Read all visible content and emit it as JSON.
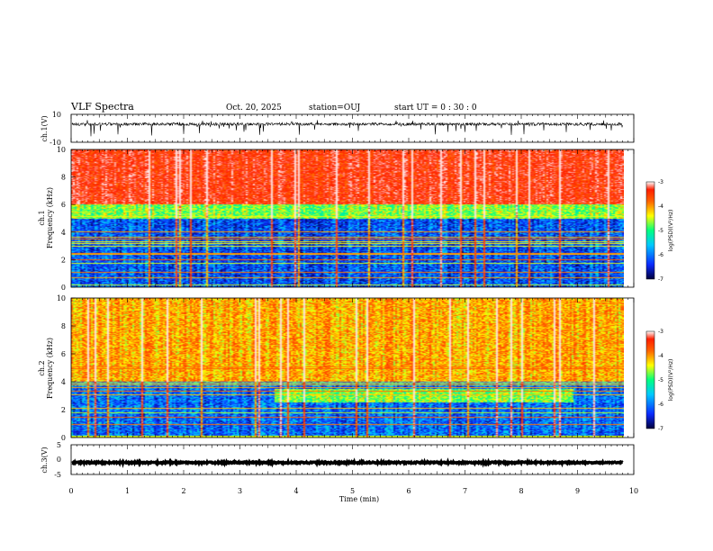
{
  "header": {
    "title": "VLF Spectra",
    "date": "Oct. 20, 2025",
    "station": "station=OUJ",
    "start_ut": "start UT =  0 : 30 : 0"
  },
  "chart_data": [
    {
      "type": "line",
      "name": "ch1-waveform",
      "ylabel": "ch.1(V)",
      "ylim": [
        -10,
        10
      ],
      "yticks": [
        "10",
        "-10"
      ],
      "xlim": [
        0,
        9.8
      ],
      "baseline": 3,
      "noise_amplitude": 1,
      "spike_range": [
        -6,
        6
      ]
    },
    {
      "type": "heatmap",
      "name": "ch1-spectrogram",
      "ylabel_lines": [
        "ch.1",
        "Frequency (kHz)"
      ],
      "ylim": [
        0,
        10
      ],
      "yticks": [
        "0",
        "2",
        "4",
        "6",
        "8",
        "10"
      ],
      "xlim": [
        0,
        9.8
      ],
      "colorbar": {
        "label": "log(PSD)(V²/Hz)",
        "range": [
          -7,
          -3
        ],
        "ticks": [
          "-3",
          "-4",
          "-5",
          "-6",
          "-7"
        ]
      },
      "bands_khz": [
        {
          "from": 0,
          "to": 5,
          "level": -6.3
        },
        {
          "from": 5,
          "to": 6,
          "level": -5.0
        },
        {
          "from": 6,
          "to": 10,
          "level": -3.6
        }
      ]
    },
    {
      "type": "heatmap",
      "name": "ch2-spectrogram",
      "ylabel_lines": [
        "ch.2",
        "Frequency (kHz)"
      ],
      "ylim": [
        0,
        10
      ],
      "yticks": [
        "0",
        "2",
        "4",
        "6",
        "8",
        "10"
      ],
      "xlim": [
        0,
        9.8
      ],
      "colorbar": {
        "label": "log(PSD)(V²/Hz)",
        "range": [
          -7,
          -3
        ],
        "ticks": [
          "-3",
          "-4",
          "-5",
          "-6",
          "-7"
        ]
      },
      "bands_khz": [
        {
          "from": 0,
          "to": 4,
          "level": -6.2
        },
        {
          "from": 4,
          "to": 10,
          "level": -4.4
        }
      ],
      "emission_window_min": [
        3.6,
        8.9
      ],
      "emission_bands_khz": [
        {
          "from": 2.5,
          "to": 3.5,
          "level": -5.0
        },
        {
          "from": 4.7,
          "to": 5.1,
          "level": -4.8
        }
      ]
    },
    {
      "type": "line",
      "name": "ch3-waveform",
      "ylabel": "ch.3(V)",
      "ylim": [
        -5,
        5
      ],
      "yticks": [
        "5",
        "0",
        "-5"
      ],
      "xlim": [
        0,
        9.8
      ],
      "baseline": -1,
      "noise_amplitude": 0.25
    }
  ],
  "x_axis": {
    "label": "Time (min)",
    "ticks": [
      "0",
      "1",
      "2",
      "3",
      "4",
      "5",
      "6",
      "7",
      "8",
      "9",
      "10"
    ],
    "range": [
      0,
      10
    ]
  },
  "colors": {
    "colormap": [
      "#00003c",
      "#0a2aff",
      "#00c8ff",
      "#00ff80",
      "#ffff00",
      "#ff6400",
      "#ff1e00",
      "#ffffff"
    ],
    "ink": "#000000"
  }
}
